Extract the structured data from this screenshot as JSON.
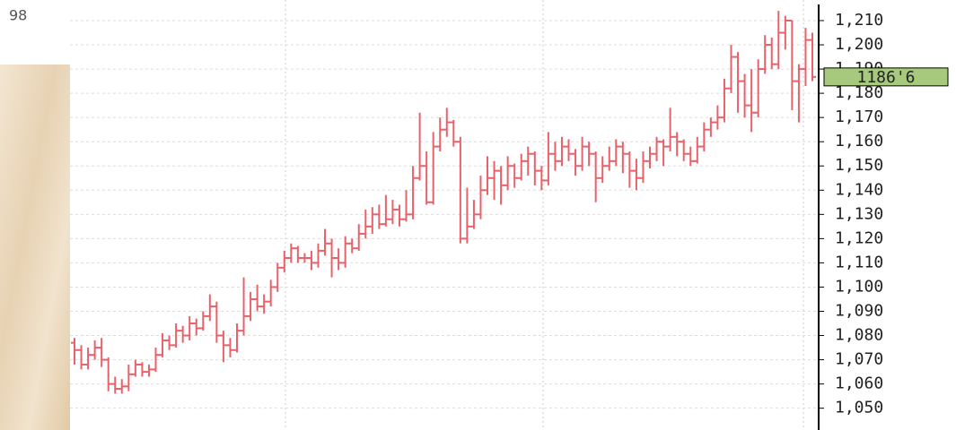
{
  "chart_data": {
    "type": "ohlc",
    "corner_text": "98",
    "color": "#e8626c",
    "grid": true,
    "open": [
      1077,
      1074,
      1068,
      1072,
      1075,
      1070,
      1060,
      1058,
      1059,
      1064,
      1068,
      1065,
      1066,
      1072,
      1078,
      1076,
      1082,
      1080,
      1085,
      1083,
      1088,
      1092,
      1080,
      1076,
      1074,
      1082,
      1088,
      1095,
      1092,
      1094,
      1100,
      1108,
      1112,
      1116,
      1112,
      1112,
      1110,
      1115,
      1118,
      1112,
      1110,
      1118,
      1116,
      1122,
      1125,
      1130,
      1126,
      1128,
      1132,
      1128,
      1130,
      1145,
      1150,
      1135,
      1158,
      1165,
      1168,
      1160,
      1120,
      1125,
      1130,
      1140,
      1145,
      1148,
      1142,
      1150,
      1145,
      1152,
      1155,
      1148,
      1144,
      1155,
      1152,
      1158,
      1155,
      1150,
      1158,
      1155,
      1145,
      1150,
      1152,
      1158,
      1155,
      1148,
      1145,
      1152,
      1155,
      1160,
      1158,
      1162,
      1160,
      1155,
      1152,
      1158,
      1165,
      1168,
      1170,
      1182,
      1195,
      1185,
      1175,
      1172,
      1190,
      1200,
      1192,
      1205,
      1210,
      1185,
      1190,
      1202
    ],
    "high": [
      1079,
      1076,
      1075,
      1078,
      1079,
      1071,
      1063,
      1062,
      1068,
      1070,
      1069,
      1068,
      1075,
      1081,
      1080,
      1085,
      1084,
      1088,
      1087,
      1090,
      1097,
      1094,
      1082,
      1079,
      1085,
      1104,
      1098,
      1101,
      1097,
      1103,
      1110,
      1115,
      1118,
      1117,
      1114,
      1115,
      1118,
      1124,
      1120,
      1116,
      1121,
      1120,
      1126,
      1132,
      1133,
      1134,
      1138,
      1136,
      1134,
      1140,
      1150,
      1172,
      1156,
      1164,
      1170,
      1174,
      1169,
      1162,
      1141,
      1136,
      1146,
      1154,
      1152,
      1150,
      1154,
      1151,
      1155,
      1158,
      1156,
      1150,
      1164,
      1160,
      1162,
      1161,
      1157,
      1162,
      1160,
      1156,
      1154,
      1158,
      1161,
      1160,
      1156,
      1153,
      1156,
      1158,
      1162,
      1161,
      1174,
      1164,
      1161,
      1158,
      1162,
      1168,
      1170,
      1175,
      1186,
      1200,
      1197,
      1188,
      1190,
      1194,
      1204,
      1203,
      1214,
      1212,
      1210,
      1192,
      1207,
      1205
    ],
    "low": [
      1068,
      1066,
      1066,
      1070,
      1067,
      1057,
      1056,
      1056,
      1057,
      1063,
      1063,
      1063,
      1065,
      1071,
      1074,
      1075,
      1077,
      1078,
      1080,
      1082,
      1086,
      1077,
      1069,
      1071,
      1073,
      1080,
      1086,
      1090,
      1089,
      1092,
      1098,
      1106,
      1110,
      1110,
      1110,
      1107,
      1108,
      1113,
      1104,
      1107,
      1108,
      1114,
      1115,
      1120,
      1122,
      1124,
      1125,
      1126,
      1125,
      1127,
      1128,
      1144,
      1134,
      1134,
      1156,
      1162,
      1158,
      1118,
      1118,
      1124,
      1128,
      1138,
      1136,
      1134,
      1140,
      1141,
      1144,
      1146,
      1142,
      1140,
      1142,
      1148,
      1150,
      1152,
      1146,
      1148,
      1150,
      1135,
      1143,
      1148,
      1150,
      1147,
      1141,
      1140,
      1143,
      1149,
      1152,
      1150,
      1156,
      1154,
      1152,
      1150,
      1151,
      1156,
      1162,
      1165,
      1168,
      1180,
      1172,
      1170,
      1164,
      1170,
      1188,
      1190,
      1190,
      1198,
      1173,
      1168,
      1183,
      1185
    ],
    "close": [
      1074,
      1068,
      1072,
      1075,
      1070,
      1060,
      1058,
      1059,
      1064,
      1068,
      1065,
      1066,
      1072,
      1078,
      1076,
      1082,
      1080,
      1085,
      1083,
      1088,
      1092,
      1080,
      1076,
      1074,
      1082,
      1088,
      1095,
      1092,
      1094,
      1100,
      1108,
      1112,
      1116,
      1112,
      1112,
      1110,
      1115,
      1118,
      1112,
      1110,
      1118,
      1116,
      1122,
      1125,
      1130,
      1126,
      1128,
      1132,
      1128,
      1130,
      1145,
      1150,
      1135,
      1158,
      1165,
      1168,
      1160,
      1120,
      1125,
      1130,
      1140,
      1145,
      1148,
      1142,
      1150,
      1145,
      1152,
      1155,
      1148,
      1144,
      1155,
      1152,
      1158,
      1155,
      1150,
      1158,
      1155,
      1145,
      1150,
      1152,
      1158,
      1155,
      1148,
      1145,
      1152,
      1155,
      1160,
      1158,
      1162,
      1160,
      1155,
      1152,
      1158,
      1165,
      1168,
      1170,
      1182,
      1195,
      1185,
      1175,
      1172,
      1190,
      1200,
      1192,
      1205,
      1210,
      1185,
      1190,
      1202,
      1186.75
    ],
    "ylim": [
      1041,
      1218.5
    ],
    "yticks": [
      {
        "value": 1050,
        "label": "1,050"
      },
      {
        "value": 1060,
        "label": "1,060"
      },
      {
        "value": 1070,
        "label": "1,070"
      },
      {
        "value": 1080,
        "label": "1,080"
      },
      {
        "value": 1090,
        "label": "1,090"
      },
      {
        "value": 1100,
        "label": "1,100"
      },
      {
        "value": 1110,
        "label": "1,110"
      },
      {
        "value": 1120,
        "label": "1,120"
      },
      {
        "value": 1130,
        "label": "1,130"
      },
      {
        "value": 1140,
        "label": "1,140"
      },
      {
        "value": 1150,
        "label": "1,150"
      },
      {
        "value": 1160,
        "label": "1,160"
      },
      {
        "value": 1170,
        "label": "1,170"
      },
      {
        "value": 1180,
        "label": "1,180"
      },
      {
        "value": 1190,
        "label": "1,190"
      },
      {
        "value": 1200,
        "label": "1,200"
      },
      {
        "value": 1210,
        "label": "1,210"
      }
    ],
    "last_price": {
      "value": 1186.75,
      "label": "1186'6"
    }
  }
}
